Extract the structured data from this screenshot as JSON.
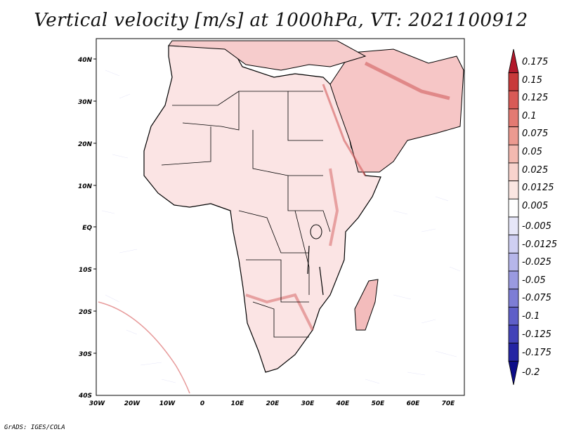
{
  "title": "Vertical velocity [m/s] at 1000hPa, VT: 2021100912",
  "credit": "GrADS: IGES/COLA",
  "map": {
    "lat_labels": [
      "40N",
      "30N",
      "20N",
      "10N",
      "EQ",
      "10S",
      "20S",
      "30S",
      "40S"
    ],
    "lon_labels": [
      "30W",
      "20W",
      "10W",
      "0",
      "10E",
      "20E",
      "30E",
      "40E",
      "50E",
      "60E",
      "70E"
    ]
  },
  "colorbar": {
    "labels": [
      "0.175",
      "0.15",
      "0.125",
      "0.1",
      "0.075",
      "0.05",
      "0.025",
      "0.0125",
      "0.005",
      "-0.005",
      "-0.0125",
      "-0.025",
      "-0.05",
      "-0.075",
      "-0.1",
      "-0.125",
      "-0.175",
      "-0.2"
    ],
    "colors": [
      "#b2182b",
      "#c8393a",
      "#d85a56",
      "#e37a72",
      "#ec9a90",
      "#f3b9b0",
      "#f8d3cd",
      "#fbe6e2",
      "#ffffff",
      "#e6e6f8",
      "#cfcff2",
      "#b6b6ea",
      "#9a9ae0",
      "#7d7dd5",
      "#5f5fc8",
      "#4242b8",
      "#2424a3",
      "#0c0c88"
    ]
  }
}
